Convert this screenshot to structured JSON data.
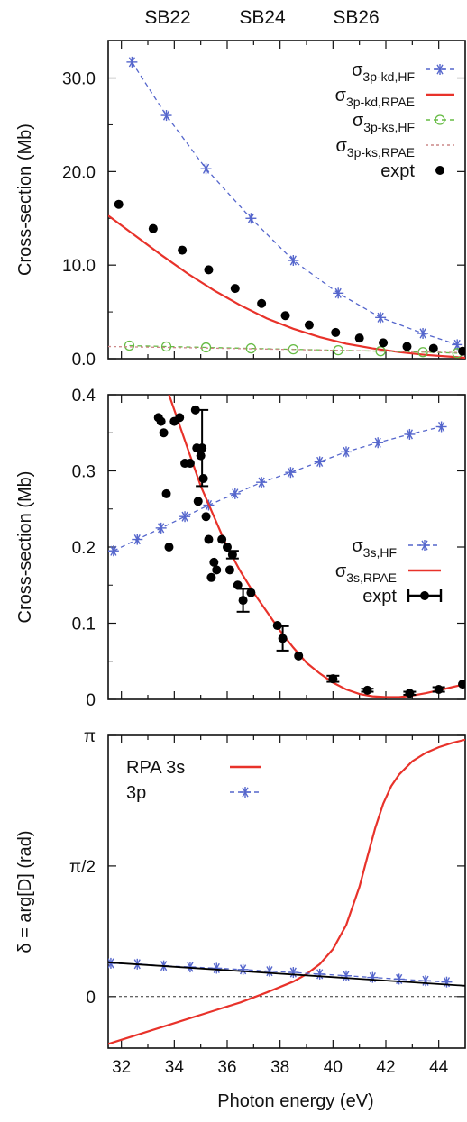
{
  "top_labels": [
    "SB22",
    "SB24",
    "SB26"
  ],
  "chart_data": [
    {
      "type": "line",
      "ylabel": "Cross-section (Mb)",
      "xlim": [
        31.5,
        45
      ],
      "ylim": [
        0,
        34
      ],
      "yticks": [
        0,
        10,
        20,
        30
      ],
      "ytick_labels": [
        "0.0",
        "10.0",
        "20.0",
        "30.0"
      ],
      "legend_position": "top-right",
      "series": [
        {
          "main": "σ",
          "sub": "3p-kd,HF",
          "color": "#5566cc",
          "style": "dashed",
          "marker": "star",
          "x": [
            32.4,
            33.7,
            35.2,
            36.9,
            38.5,
            40.2,
            41.8,
            43.4,
            44.7
          ],
          "y": [
            31.7,
            26.0,
            20.3,
            15.0,
            10.5,
            7.0,
            4.4,
            2.7,
            1.5
          ]
        },
        {
          "main": "σ",
          "sub": "3p-kd,RPAE",
          "color": "#e8322a",
          "style": "solid",
          "marker": "none",
          "x": [
            31.5,
            32.5,
            33.5,
            34.5,
            35.5,
            36.5,
            37.5,
            38.5,
            39.5,
            40.5,
            41.5,
            42.5,
            43.5,
            44.5,
            45
          ],
          "y": [
            15.3,
            13.2,
            11.1,
            9.1,
            7.3,
            5.7,
            4.3,
            3.2,
            2.3,
            1.6,
            1.1,
            0.7,
            0.4,
            0.2,
            0.1
          ]
        },
        {
          "main": "σ",
          "sub": "3p-ks,HF",
          "color": "#66bb44",
          "style": "dashed",
          "marker": "circle",
          "x": [
            32.3,
            33.7,
            35.2,
            36.9,
            38.5,
            40.2,
            41.8,
            43.4,
            44.7
          ],
          "y": [
            1.4,
            1.3,
            1.2,
            1.1,
            1.0,
            0.9,
            0.8,
            0.7,
            0.6
          ]
        },
        {
          "main": "σ",
          "sub": "3p-ks,RPAE",
          "color": "#cc8888",
          "style": "dotted",
          "marker": "none",
          "x": [
            31.5,
            35,
            38,
            41,
            45
          ],
          "y": [
            1.3,
            1.15,
            1.0,
            0.85,
            0.65
          ]
        },
        {
          "main": "expt",
          "sub": "",
          "color": "#000000",
          "style": "none",
          "marker": "dot",
          "x": [
            31.9,
            33.2,
            34.3,
            35.3,
            36.3,
            37.3,
            38.2,
            39.1,
            40.1,
            41.0,
            41.9,
            42.8,
            43.8,
            44.9
          ],
          "y": [
            16.5,
            13.9,
            11.6,
            9.5,
            7.5,
            5.9,
            4.6,
            3.6,
            2.8,
            2.2,
            1.7,
            1.3,
            1.1,
            0.8
          ]
        }
      ]
    },
    {
      "type": "line",
      "ylabel": "Cross-section (Mb)",
      "xlim": [
        31.5,
        45
      ],
      "ylim": [
        0,
        0.4
      ],
      "yticks": [
        0,
        0.1,
        0.2,
        0.3,
        0.4
      ],
      "ytick_labels": [
        "0",
        "0.1",
        "0.2",
        "0.3",
        "0.4"
      ],
      "legend_position": "center-right",
      "series": [
        {
          "main": "σ",
          "sub": "3s,HF",
          "color": "#5566cc",
          "style": "dashed",
          "marker": "star",
          "x": [
            31.7,
            32.6,
            33.5,
            34.4,
            35.3,
            36.3,
            37.3,
            38.4,
            39.5,
            40.5,
            41.7,
            42.9,
            44.1
          ],
          "y": [
            0.195,
            0.21,
            0.225,
            0.24,
            0.255,
            0.27,
            0.285,
            0.298,
            0.312,
            0.325,
            0.337,
            0.348,
            0.358
          ]
        },
        {
          "main": "σ",
          "sub": "3s,RPAE",
          "color": "#e8322a",
          "style": "solid",
          "marker": "none",
          "x": [
            33.8,
            34.2,
            34.6,
            35.0,
            35.5,
            36.0,
            36.5,
            37.0,
            37.5,
            38.0,
            38.5,
            39.0,
            39.5,
            40.0,
            40.5,
            41.0,
            41.5,
            42.0,
            42.5,
            43.0,
            43.5,
            44.0,
            44.5,
            45.0
          ],
          "y": [
            0.4,
            0.36,
            0.32,
            0.28,
            0.24,
            0.2,
            0.168,
            0.14,
            0.115,
            0.09,
            0.068,
            0.048,
            0.034,
            0.022,
            0.013,
            0.007,
            0.004,
            0.003,
            0.003,
            0.005,
            0.008,
            0.012,
            0.016,
            0.02
          ]
        },
        {
          "main": "expt",
          "sub": "",
          "color": "#000000",
          "style": "none",
          "marker": "dot",
          "x": [
            33.4,
            33.5,
            33.6,
            33.7,
            33.8,
            34.0,
            34.2,
            34.4,
            34.6,
            34.8,
            34.85,
            34.9,
            35.0,
            35.05,
            35.1,
            35.2,
            35.3,
            35.4,
            35.5,
            35.6,
            35.8,
            36.0,
            36.1,
            36.2,
            36.4,
            36.6,
            36.9,
            37.9,
            38.1,
            38.7,
            40.0,
            41.3,
            42.9,
            44.0,
            44.9
          ],
          "y": [
            0.37,
            0.365,
            0.35,
            0.27,
            0.2,
            0.365,
            0.37,
            0.31,
            0.31,
            0.38,
            0.33,
            0.26,
            0.32,
            0.33,
            0.29,
            0.24,
            0.21,
            0.16,
            0.18,
            0.17,
            0.21,
            0.2,
            0.17,
            0.19,
            0.15,
            0.13,
            0.14,
            0.097,
            0.08,
            0.057,
            0.027,
            0.012,
            0.008,
            0.013,
            0.02
          ],
          "err": [
            0,
            0,
            0,
            0,
            0,
            0,
            0,
            0,
            0,
            0,
            0,
            0,
            0,
            0.05,
            0,
            0,
            0,
            0,
            0,
            0,
            0,
            0,
            0,
            0.005,
            0,
            0.015,
            0,
            0,
            0.016,
            0,
            0.004,
            0.002,
            0.002,
            0.003,
            0
          ]
        }
      ]
    },
    {
      "type": "line",
      "ylabel": "δ = arg[D] (rad)",
      "xlabel": "Photon energy (eV)",
      "xlim": [
        31.5,
        45
      ],
      "ylim": [
        -0.62,
        3.1416
      ],
      "xticks": [
        32,
        34,
        36,
        38,
        40,
        42,
        44
      ],
      "xtick_labels": [
        "32",
        "34",
        "36",
        "38",
        "40",
        "42",
        "44"
      ],
      "yticks": [
        0,
        1.5708,
        3.1416
      ],
      "ytick_labels": [
        "0",
        "π/2",
        "π"
      ],
      "legend_position": "top-left",
      "series": [
        {
          "main": "RPA 3s",
          "sub": "",
          "color": "#e8322a",
          "style": "solid",
          "marker": "none",
          "x": [
            31.5,
            32.5,
            33.5,
            34.5,
            35.5,
            36.5,
            37.5,
            38.5,
            39.0,
            39.5,
            40.0,
            40.5,
            41.0,
            41.3,
            41.6,
            41.9,
            42.2,
            42.5,
            43.0,
            43.5,
            44.0,
            44.5,
            45.0
          ],
          "y": [
            -0.57,
            -0.47,
            -0.37,
            -0.27,
            -0.17,
            -0.07,
            0.05,
            0.18,
            0.27,
            0.39,
            0.57,
            0.86,
            1.32,
            1.68,
            2.03,
            2.32,
            2.53,
            2.67,
            2.83,
            2.93,
            3.0,
            3.05,
            3.09
          ]
        },
        {
          "main": "3p",
          "sub": "",
          "color": "#5566cc",
          "style": "dashed",
          "marker": "star",
          "x": [
            31.6,
            32.6,
            33.6,
            34.6,
            35.6,
            36.6,
            37.6,
            38.5,
            39.5,
            40.5,
            41.5,
            42.5,
            43.5,
            44.3
          ],
          "y": [
            0.4,
            0.39,
            0.37,
            0.355,
            0.34,
            0.325,
            0.305,
            0.29,
            0.27,
            0.25,
            0.23,
            0.21,
            0.19,
            0.175
          ]
        },
        {
          "main": "",
          "sub": "",
          "color": "#000000",
          "style": "solid",
          "marker": "none",
          "x": [
            31.5,
            45.0
          ],
          "y": [
            0.41,
            0.13
          ]
        }
      ]
    }
  ]
}
